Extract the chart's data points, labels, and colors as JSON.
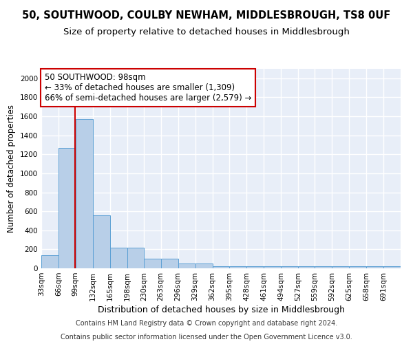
{
  "title_line1": "50, SOUTHWOOD, COULBY NEWHAM, MIDDLESBROUGH, TS8 0UF",
  "title_line2": "Size of property relative to detached houses in Middlesbrough",
  "xlabel": "Distribution of detached houses by size in Middlesbrough",
  "ylabel": "Number of detached properties",
  "footnote1": "Contains HM Land Registry data © Crown copyright and database right 2024.",
  "footnote2": "Contains public sector information licensed under the Open Government Licence v3.0.",
  "bin_edges": [
    33,
    66,
    99,
    132,
    165,
    198,
    230,
    263,
    296,
    329,
    362,
    395,
    428,
    461,
    494,
    527,
    559,
    592,
    625,
    658,
    691,
    724
  ],
  "bar_heights": [
    140,
    1270,
    1570,
    560,
    215,
    215,
    100,
    100,
    50,
    50,
    25,
    25,
    25,
    20,
    20,
    20,
    20,
    20,
    20,
    20,
    20
  ],
  "bar_color": "#b8cfe8",
  "bar_edge_color": "#5a9fd4",
  "property_size": 98,
  "red_line_color": "#cc0000",
  "ann_line1": "50 SOUTHWOOD: 98sqm",
  "ann_line2": "← 33% of detached houses are smaller (1,309)",
  "ann_line3": "66% of semi-detached houses are larger (2,579) →",
  "annotation_box_color": "white",
  "annotation_box_edge_color": "#cc0000",
  "ylim": [
    0,
    2100
  ],
  "yticks": [
    0,
    200,
    400,
    600,
    800,
    1000,
    1200,
    1400,
    1600,
    1800,
    2000
  ],
  "background_color": "#e8eef8",
  "grid_color": "white",
  "title1_fontsize": 10.5,
  "title2_fontsize": 9.5,
  "annotation_fontsize": 8.5,
  "xlabel_fontsize": 9,
  "ylabel_fontsize": 8.5,
  "tick_fontsize": 7.5,
  "footnote_fontsize": 7
}
